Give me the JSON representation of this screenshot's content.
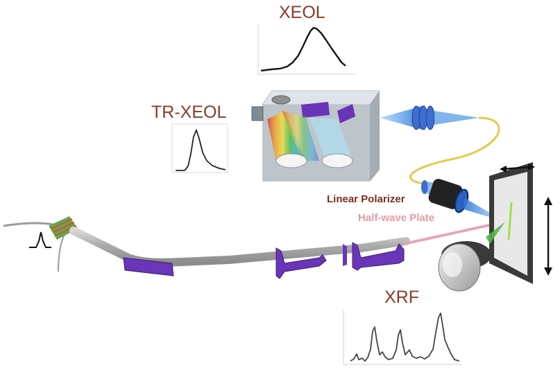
{
  "labels": {
    "xeol": "XEOL",
    "trxeol": "TR-XEOL",
    "xrf": "XRF",
    "linear_polarizer": "Linear Polarizer",
    "half_wave_plate": "Half-wave Plate"
  },
  "colors": {
    "title_text": "#8a3a26",
    "linear_polarizer_text": "#7a2e1e",
    "half_wave_plate_text": "#e89a9a",
    "optics_purple": "#6a35b8",
    "beam_pink": "#e8a5b5",
    "lens_blue": "#4f8fdc",
    "fiber_yellow": "#e8c84a",
    "spectrometer_gray": "#b5c0c8"
  }
}
